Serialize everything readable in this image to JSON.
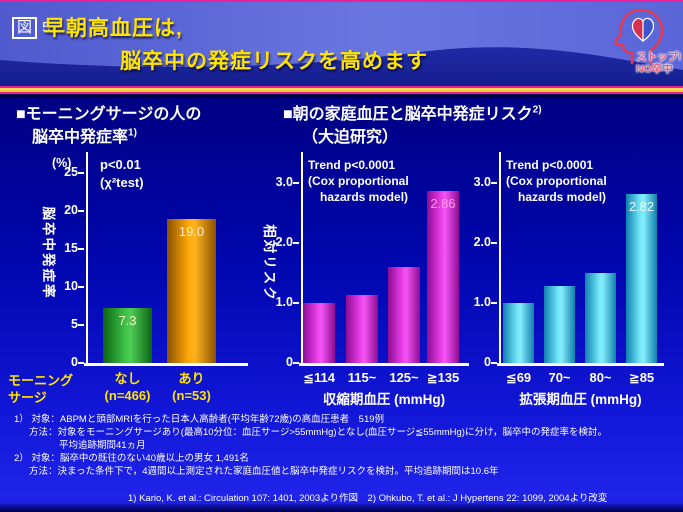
{
  "slide": {
    "figure_label": "図",
    "figure_number": "5",
    "title_line1": "早朝高血圧は,",
    "title_line2": "脳卒中の発症リスクを高めます"
  },
  "logo": {
    "icon": "head-brain-heart-icon",
    "text_line1": "ストップ!",
    "text_line2": "NO卒中"
  },
  "sections": {
    "left": {
      "heading_line1": "■モーニングサージの人の",
      "heading_line2": "脳卒中発症率",
      "heading_sup": "1)"
    },
    "right": {
      "heading": "■朝の家庭血圧と脳卒中発症リスク",
      "heading_sup": "2)",
      "subheading": "（大迫研究）"
    }
  },
  "chart_data": [
    {
      "type": "bar",
      "title": "モーニングサージの人の脳卒中発症率",
      "ylabel": "脳卒中発症率",
      "y_unit": "(%)",
      "ylim": [
        0,
        27
      ],
      "yticks": [
        0,
        5,
        10,
        15,
        20,
        25
      ],
      "ytick_labels": [
        "0",
        "5",
        "10",
        "15",
        "20",
        "25"
      ],
      "annotation": [
        "p<0.01",
        "(χ²test)"
      ],
      "x_axis_note": [
        "モーニング",
        "サージ"
      ],
      "categories": [
        [
          "なし",
          "(n=466)"
        ],
        [
          "あり",
          "(n=53)"
        ]
      ],
      "values": [
        7.3,
        19.0
      ],
      "value_labels": [
        "7.3",
        "19.0"
      ],
      "bar_colors": [
        "#2eb135",
        "#f09c00"
      ],
      "grid": false,
      "legend": null
    },
    {
      "type": "bar",
      "title": "朝の家庭血圧と脳卒中発症リスク（収縮期血圧）",
      "ylabel": "相対リスク",
      "xlabel": "収縮期血圧 (mmHg)",
      "ylim": [
        0,
        3.5
      ],
      "yticks": [
        0,
        1.0,
        2.0,
        3.0
      ],
      "ytick_labels": [
        "0",
        "1.0",
        "2.0",
        "3.0"
      ],
      "annotation": [
        "Trend p<0.0001",
        "(Cox proportional",
        "hazards model)"
      ],
      "categories": [
        "≦114",
        "115~",
        "125~",
        "≧135"
      ],
      "values": [
        1.0,
        1.13,
        1.6,
        2.86
      ],
      "value_labels": [
        null,
        null,
        null,
        "2.86"
      ],
      "bar_colors": [
        "#d916d9",
        "#d916d9",
        "#d916d9",
        "#d916d9"
      ],
      "grid": false,
      "legend": null
    },
    {
      "type": "bar",
      "title": "朝の家庭血圧と脳卒中発症リスク（拡張期血圧）",
      "ylabel": "相対リスク",
      "xlabel": "拡張期血圧 (mmHg)",
      "ylim": [
        0,
        3.5
      ],
      "yticks": [
        0,
        1.0,
        2.0,
        3.0
      ],
      "ytick_labels": [
        "0",
        "1.0",
        "2.0",
        "3.0"
      ],
      "annotation": [
        "Trend p<0.0001",
        "(Cox proportional",
        "hazards model)"
      ],
      "categories": [
        "≦69",
        "70~",
        "80~",
        "≧85"
      ],
      "values": [
        1.0,
        1.28,
        1.5,
        2.82
      ],
      "value_labels": [
        null,
        null,
        null,
        "2.82"
      ],
      "bar_colors": [
        "#35c8e8",
        "#35c8e8",
        "#35c8e8",
        "#35c8e8"
      ],
      "grid": false,
      "legend": null
    }
  ],
  "footnotes": {
    "lines": [
      {
        "indent": 0,
        "text": "1） 対象：ABPMと頭部MRIを行った日本人高齢者(平均年齢72歳)の高血圧患者　519例"
      },
      {
        "indent": 1,
        "text": "方法：対象をモーニングサージあり(最高10分位：血圧サージ>55mmHg)となし(血圧サージ≦55mmHg)に分け，脳卒中の発症率を検討。"
      },
      {
        "indent": 2,
        "text": "平均追跡期間41ヵ月"
      },
      {
        "indent": 0,
        "text": "2） 対象：脳卒中の既往のない40歳以上の男女 1,491名"
      },
      {
        "indent": 1,
        "text": "方法：決まった条件下で，4週間以上測定された家庭血圧値と脳卒中発症リスクを検討。平均追跡期間は10.6年"
      }
    ],
    "citation": "1) Kario, K. et al.: Circulation 107: 1401, 2003より作図　2) Ohkubo, T. et al.: J Hypertens 22: 1099, 2004より改変"
  },
  "colors": {
    "title_yellow": "#ffe400",
    "label_yellow": "#ffe400",
    "bar_green": "#2eb135",
    "bar_orange": "#f09c00",
    "bar_magenta": "#d916d9",
    "bar_cyan": "#35c8e8",
    "divider_magenta": "#e8209a",
    "divider_yellow": "#ffc830",
    "header_blue_light": "#6a76e0",
    "header_blue_dark": "#1a24a0"
  }
}
